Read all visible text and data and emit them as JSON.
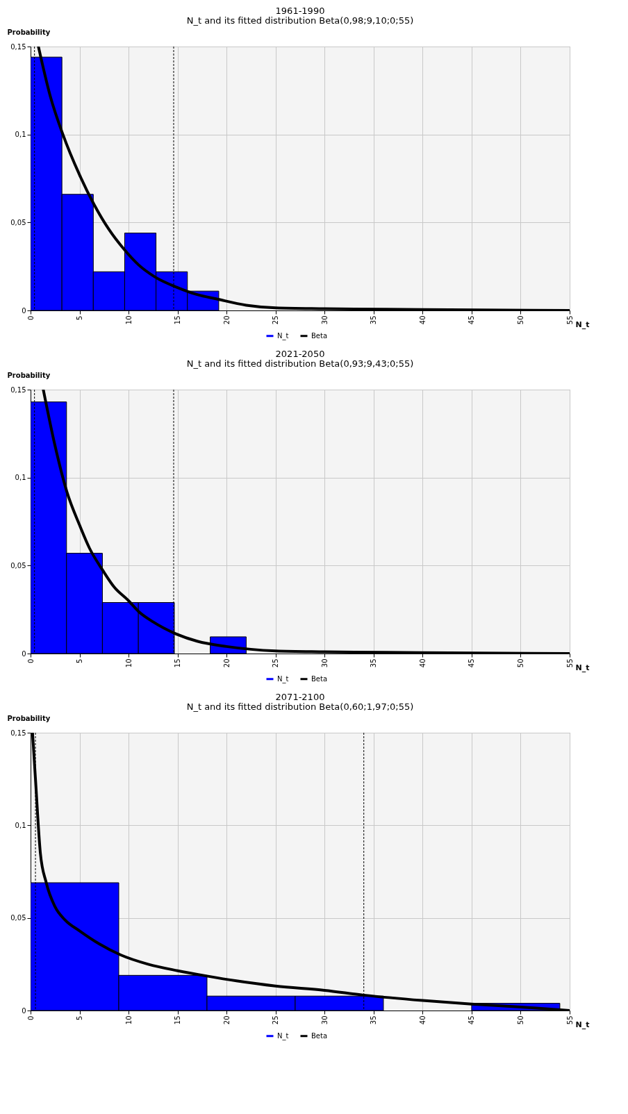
{
  "chart_data": [
    {
      "type": "histogram",
      "title": "1961-1990",
      "subtitle": "N_t and its fitted distribution Beta(0,98;9,10;0;55)",
      "xlabel": "N_t",
      "ylabel": "Probability",
      "bins": [
        0,
        3.2,
        6.4,
        9.6,
        12.8,
        16,
        19.2
      ],
      "series": [
        {
          "name": "N_t",
          "type": "histogram",
          "color": "#0000ff",
          "values": [
            0.144,
            0.066,
            0.022,
            0.044,
            0.022,
            0.011
          ]
        },
        {
          "name": "Beta",
          "type": "line",
          "color": "#000000",
          "x": [
            0.8,
            2,
            3.3,
            5,
            6.5,
            8,
            9.5,
            11,
            12.7,
            15,
            17,
            19,
            22,
            25,
            30,
            40,
            55
          ],
          "values": [
            0.15,
            0.122,
            0.1,
            0.077,
            0.06,
            0.046,
            0.035,
            0.026,
            0.019,
            0.013,
            0.009,
            0.0065,
            0.003,
            0.0015,
            0.001,
            0.0005,
            0
          ]
        }
      ],
      "xlim": [
        0,
        55
      ],
      "xticks": [
        0,
        5,
        10,
        15,
        20,
        25,
        30,
        35,
        40,
        45,
        50,
        55
      ],
      "ylim": [
        0,
        0.15
      ],
      "yticks": [
        {
          "value": 0,
          "label": "0"
        },
        {
          "value": 0.05,
          "label": "0,05"
        },
        {
          "value": 0.1,
          "label": "0,1"
        },
        {
          "value": 0.15,
          "label": "0,15"
        }
      ],
      "ref_lines": [
        {
          "axis": "x",
          "value": 0.4,
          "line_style": "dashed",
          "color": "#000000"
        },
        {
          "axis": "x",
          "value": 14.6,
          "line_style": "dashed",
          "color": "#000000"
        }
      ],
      "grid": true,
      "legend": "bottom"
    },
    {
      "type": "histogram",
      "title": "2021-2050",
      "subtitle": "N_t  and its fitted distribution Beta(0,93;9,43;0;55)",
      "xlabel": "N_t",
      "ylabel": "Probability",
      "bins": [
        0,
        3.67,
        7.33,
        11,
        14.67,
        18.33,
        22
      ],
      "series": [
        {
          "name": "N_t",
          "type": "histogram",
          "color": "#0000ff",
          "values": [
            0.143,
            0.057,
            0.029,
            0.029,
            0,
            0.0095
          ]
        },
        {
          "name": "Beta",
          "type": "line",
          "color": "#000000",
          "x": [
            1.3,
            2.5,
            3.7,
            5,
            6,
            7.4,
            8.5,
            10,
            11,
            12.5,
            14.7,
            17,
            20,
            25,
            30,
            40,
            55
          ],
          "values": [
            0.15,
            0.118,
            0.092,
            0.073,
            0.06,
            0.047,
            0.038,
            0.03,
            0.024,
            0.018,
            0.0115,
            0.007,
            0.004,
            0.0015,
            0.001,
            0.0005,
            0
          ]
        }
      ],
      "xlim": [
        0,
        55
      ],
      "xticks": [
        0,
        5,
        10,
        15,
        20,
        25,
        30,
        35,
        40,
        45,
        50,
        55
      ],
      "ylim": [
        0,
        0.15
      ],
      "yticks": [
        {
          "value": 0,
          "label": "0"
        },
        {
          "value": 0.05,
          "label": "0,05"
        },
        {
          "value": 0.1,
          "label": "0,1"
        },
        {
          "value": 0.15,
          "label": "0,15"
        }
      ],
      "ref_lines": [
        {
          "axis": "x",
          "value": 0.4,
          "line_style": "dashed",
          "color": "#000000"
        },
        {
          "axis": "x",
          "value": 14.6,
          "line_style": "dashed",
          "color": "#000000"
        }
      ],
      "grid": true,
      "legend": "bottom"
    },
    {
      "type": "histogram",
      "title": "2071-2100",
      "subtitle": "N_t and its fitted distribution Beta(0,60;1,97;0;55)",
      "xlabel": "N_t",
      "ylabel": "Probability",
      "bins": [
        0,
        9,
        18,
        27,
        36,
        45,
        54
      ],
      "series": [
        {
          "name": "N_t",
          "type": "histogram",
          "color": "#0000ff",
          "values": [
            0.069,
            0.019,
            0.0078,
            0.0078,
            0,
            0.0039
          ]
        },
        {
          "name": "Beta",
          "type": "line",
          "color": "#000000",
          "x": [
            0.2,
            0.5,
            1,
            1.6,
            2.5,
            3.5,
            5,
            7,
            9.2,
            12,
            15,
            18,
            21,
            25,
            30,
            34,
            40,
            45,
            50,
            55
          ],
          "values": [
            0.15,
            0.125,
            0.085,
            0.069,
            0.056,
            0.049,
            0.043,
            0.036,
            0.03,
            0.025,
            0.0215,
            0.0186,
            0.016,
            0.0132,
            0.0109,
            0.0083,
            0.0054,
            0.0035,
            0.0019,
            0
          ]
        }
      ],
      "xlim": [
        0,
        55
      ],
      "xticks": [
        0,
        5,
        10,
        15,
        20,
        25,
        30,
        35,
        40,
        45,
        50,
        55
      ],
      "ylim": [
        0,
        0.15
      ],
      "yticks": [
        {
          "value": 0,
          "label": "0"
        },
        {
          "value": 0.05,
          "label": "0,05"
        },
        {
          "value": 0.1,
          "label": "0,1"
        },
        {
          "value": 0.15,
          "label": "0,15"
        }
      ],
      "ref_lines": [
        {
          "axis": "x",
          "value": 0.5,
          "line_style": "dashed",
          "color": "#000000"
        },
        {
          "axis": "x",
          "value": 34,
          "line_style": "dashed",
          "color": "#000000"
        }
      ],
      "grid": true,
      "legend": "bottom"
    }
  ]
}
